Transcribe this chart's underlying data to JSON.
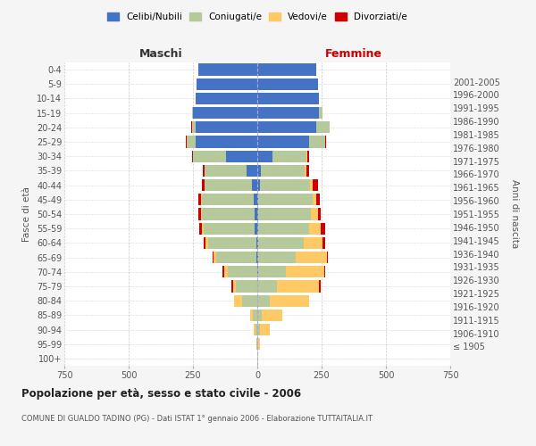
{
  "age_groups": [
    "100+",
    "95-99",
    "90-94",
    "85-89",
    "80-84",
    "75-79",
    "70-74",
    "65-69",
    "60-64",
    "55-59",
    "50-54",
    "45-49",
    "40-44",
    "35-39",
    "30-34",
    "25-29",
    "20-24",
    "15-19",
    "10-14",
    "5-9",
    "0-4"
  ],
  "birth_years": [
    "≤ 1905",
    "1906-1910",
    "1911-1915",
    "1916-1920",
    "1921-1925",
    "1926-1930",
    "1931-1935",
    "1936-1940",
    "1941-1945",
    "1946-1950",
    "1951-1955",
    "1956-1960",
    "1961-1965",
    "1966-1970",
    "1971-1975",
    "1976-1980",
    "1981-1985",
    "1986-1990",
    "1991-1995",
    "1996-2000",
    "2001-2005"
  ],
  "male": {
    "celibi": [
      0,
      0,
      0,
      0,
      0,
      0,
      0,
      5,
      5,
      10,
      10,
      15,
      20,
      40,
      120,
      240,
      240,
      250,
      240,
      235,
      230
    ],
    "coniugati": [
      0,
      2,
      8,
      18,
      60,
      85,
      115,
      155,
      185,
      200,
      205,
      200,
      185,
      165,
      130,
      35,
      15,
      2,
      0,
      0,
      0
    ],
    "vedovi": [
      0,
      0,
      5,
      10,
      30,
      10,
      15,
      10,
      10,
      5,
      5,
      5,
      0,
      0,
      0,
      0,
      0,
      0,
      0,
      0,
      0
    ],
    "divorziati": [
      0,
      0,
      0,
      0,
      2,
      5,
      5,
      5,
      8,
      12,
      10,
      10,
      12,
      8,
      5,
      3,
      2,
      0,
      0,
      0,
      0
    ]
  },
  "female": {
    "nubili": [
      0,
      0,
      0,
      0,
      0,
      0,
      5,
      5,
      5,
      5,
      5,
      5,
      10,
      15,
      60,
      200,
      230,
      240,
      240,
      235,
      230
    ],
    "coniugate": [
      0,
      2,
      10,
      18,
      50,
      75,
      105,
      145,
      175,
      195,
      205,
      210,
      195,
      170,
      130,
      65,
      50,
      15,
      0,
      0,
      0
    ],
    "vedove": [
      2,
      10,
      40,
      80,
      150,
      165,
      150,
      120,
      75,
      45,
      25,
      15,
      10,
      5,
      3,
      0,
      0,
      0,
      0,
      0,
      0
    ],
    "divorziate": [
      0,
      0,
      0,
      0,
      2,
      5,
      5,
      5,
      8,
      18,
      12,
      12,
      20,
      10,
      10,
      3,
      2,
      0,
      0,
      0,
      0
    ]
  },
  "colors": {
    "celibi": "#4472c4",
    "coniugati": "#b5c99a",
    "vedovi": "#ffc966",
    "divorziati": "#cc0000"
  },
  "title": "Popolazione per età, sesso e stato civile - 2006",
  "subtitle": "COMUNE DI GUALDO TADINO (PG) - Dati ISTAT 1° gennaio 2006 - Elaborazione TUTTAITALIA.IT",
  "xlabel_left": "Maschi",
  "xlabel_right": "Femmine",
  "ylabel_left": "Fasce di età",
  "ylabel_right": "Anni di nascita",
  "xlim": 750,
  "background_color": "#f5f5f5",
  "plot_bg_color": "#ffffff"
}
